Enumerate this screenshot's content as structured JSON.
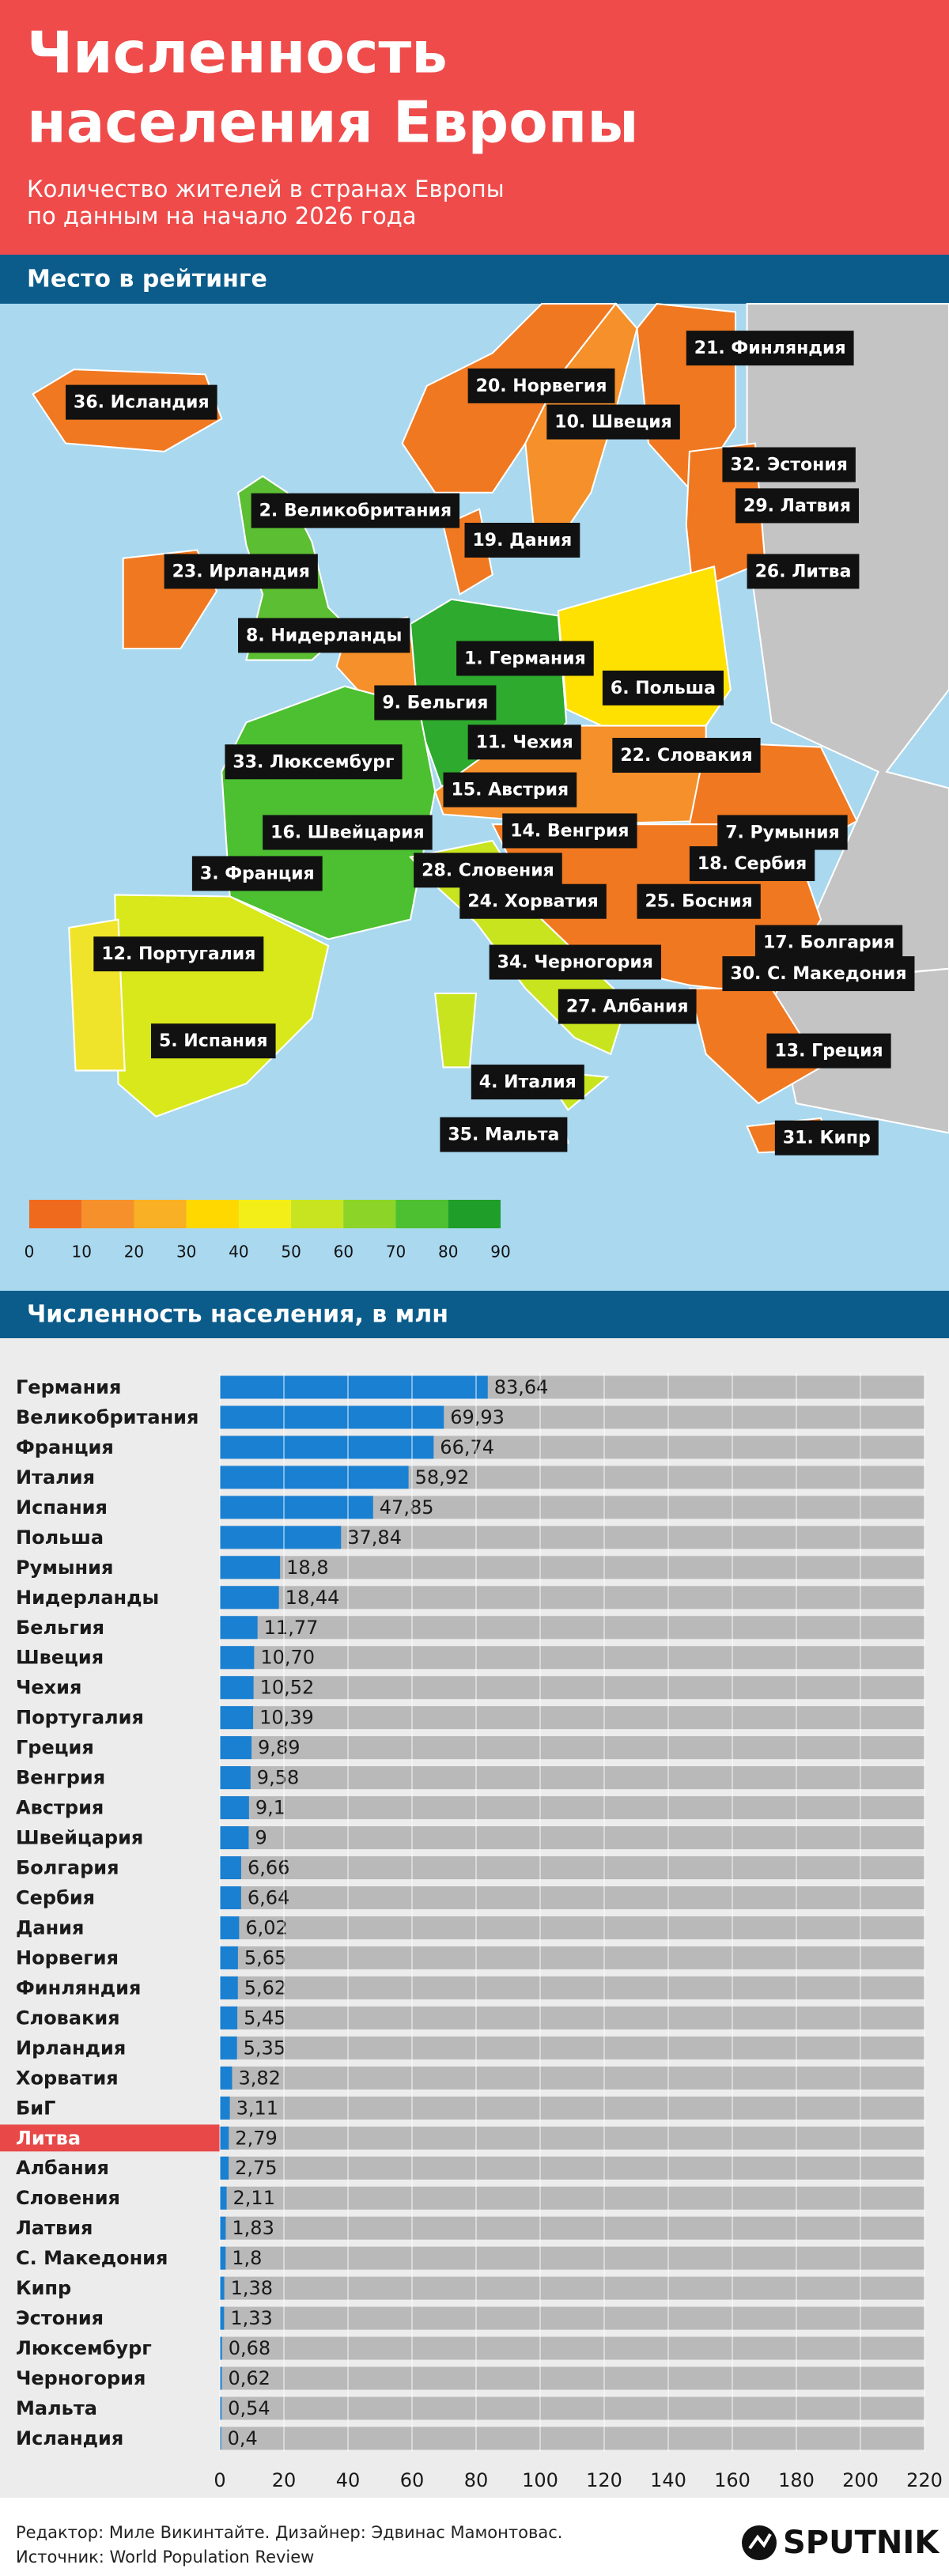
{
  "header": {
    "title_lines": [
      "Численность",
      "населения Европы"
    ],
    "subtitle_lines": [
      "Количество жителей в странах Европы",
      "по данным на начало 2026 года"
    ]
  },
  "map": {
    "section_title": "Место в рейтинге",
    "labels": [
      "36. Исландия",
      "20. Норвегия",
      "21. Финляндия",
      "10. Швеция",
      "32. Эстония",
      "2. Великобритания",
      "29. Латвия",
      "19. Дания",
      "23. Ирландия",
      "26. Литва",
      "8. Нидерланды",
      "1. Германия",
      "6. Польша",
      "9. Бельгия",
      "11. Чехия",
      "22. Словакия",
      "33. Люксембург",
      "15. Австрия",
      "16. Швейцария",
      "14. Венгрия",
      "7. Румыния",
      "28. Словения",
      "18. Сербия",
      "3. Франция",
      "24. Хорватия",
      "25. Босния",
      "17. Болгария",
      "12. Португалия",
      "34. Черногория",
      "30. С. Македония",
      "27. Албания",
      "5. Испания",
      "13. Греция",
      "4. Италия",
      "35. Мальта",
      "31. Кипр"
    ],
    "legend": {
      "colors": [
        "#f06a1e",
        "#f5902a",
        "#f9b024",
        "#ffd800",
        "#f4ee18",
        "#c8e420",
        "#8cd428",
        "#4cc030",
        "#1f9e2a"
      ],
      "ticks": [
        0,
        10,
        20,
        30,
        40,
        50,
        60,
        70,
        80,
        90
      ]
    }
  },
  "chart_data": {
    "type": "bar",
    "title": "Численность населения, в млн",
    "categories": [
      "Германия",
      "Великобритания",
      "Франция",
      "Италия",
      "Испания",
      "Польша",
      "Румыния",
      "Нидерланды",
      "Бельгия",
      "Швеция",
      "Чехия",
      "Португалия",
      "Греция",
      "Венгрия",
      "Австрия",
      "Швейцария",
      "Болгария",
      "Сербия",
      "Дания",
      "Норвегия",
      "Финляндия",
      "Словакия",
      "Ирландия",
      "Хорватия",
      "БиГ",
      "Литва",
      "Албания",
      "Словения",
      "Латвия",
      "С. Македония",
      "Кипр",
      "Эстония",
      "Люксембург",
      "Черногория",
      "Мальта",
      "Исландия"
    ],
    "values": [
      83.64,
      69.93,
      66.74,
      58.92,
      47.85,
      37.84,
      18.8,
      18.44,
      11.77,
      10.7,
      10.52,
      10.39,
      9.89,
      9.58,
      9.1,
      9,
      6.66,
      6.64,
      6.02,
      5.65,
      5.62,
      5.45,
      5.35,
      3.82,
      3.11,
      2.79,
      2.75,
      2.11,
      1.83,
      1.8,
      1.38,
      1.33,
      0.68,
      0.62,
      0.54,
      0.4
    ],
    "value_labels": [
      "83,64",
      "69,93",
      "66,74",
      "58,92",
      "47,85",
      "37,84",
      "18,8",
      "18,44",
      "11,77",
      "10,70",
      "10,52",
      "10,39",
      "9,89",
      "9,58",
      "9,1",
      "9",
      "6,66",
      "6,64",
      "6,02",
      "5,65",
      "5,62",
      "5,45",
      "5,35",
      "3,82",
      "3,11",
      "2,79",
      "2,75",
      "2,11",
      "1,83",
      "1,8",
      "1,38",
      "1,33",
      "0,68",
      "0,62",
      "0,54",
      "0,4"
    ],
    "color": "#1a80d2",
    "track_color": "#b9b9b9",
    "highlight_category": "Литва",
    "highlight_color": "#e84848",
    "xlim": [
      0,
      220
    ],
    "xticks": [
      0,
      20,
      40,
      60,
      80,
      100,
      120,
      140,
      160,
      180,
      200,
      220
    ],
    "grid": true
  },
  "footer": {
    "credits": "Редактор: Миле Викинтайте.  Дизайнер: Эдвинас Мамонтовас.",
    "source": "Источник: World Population Review",
    "logo": "SPUTNIK"
  }
}
